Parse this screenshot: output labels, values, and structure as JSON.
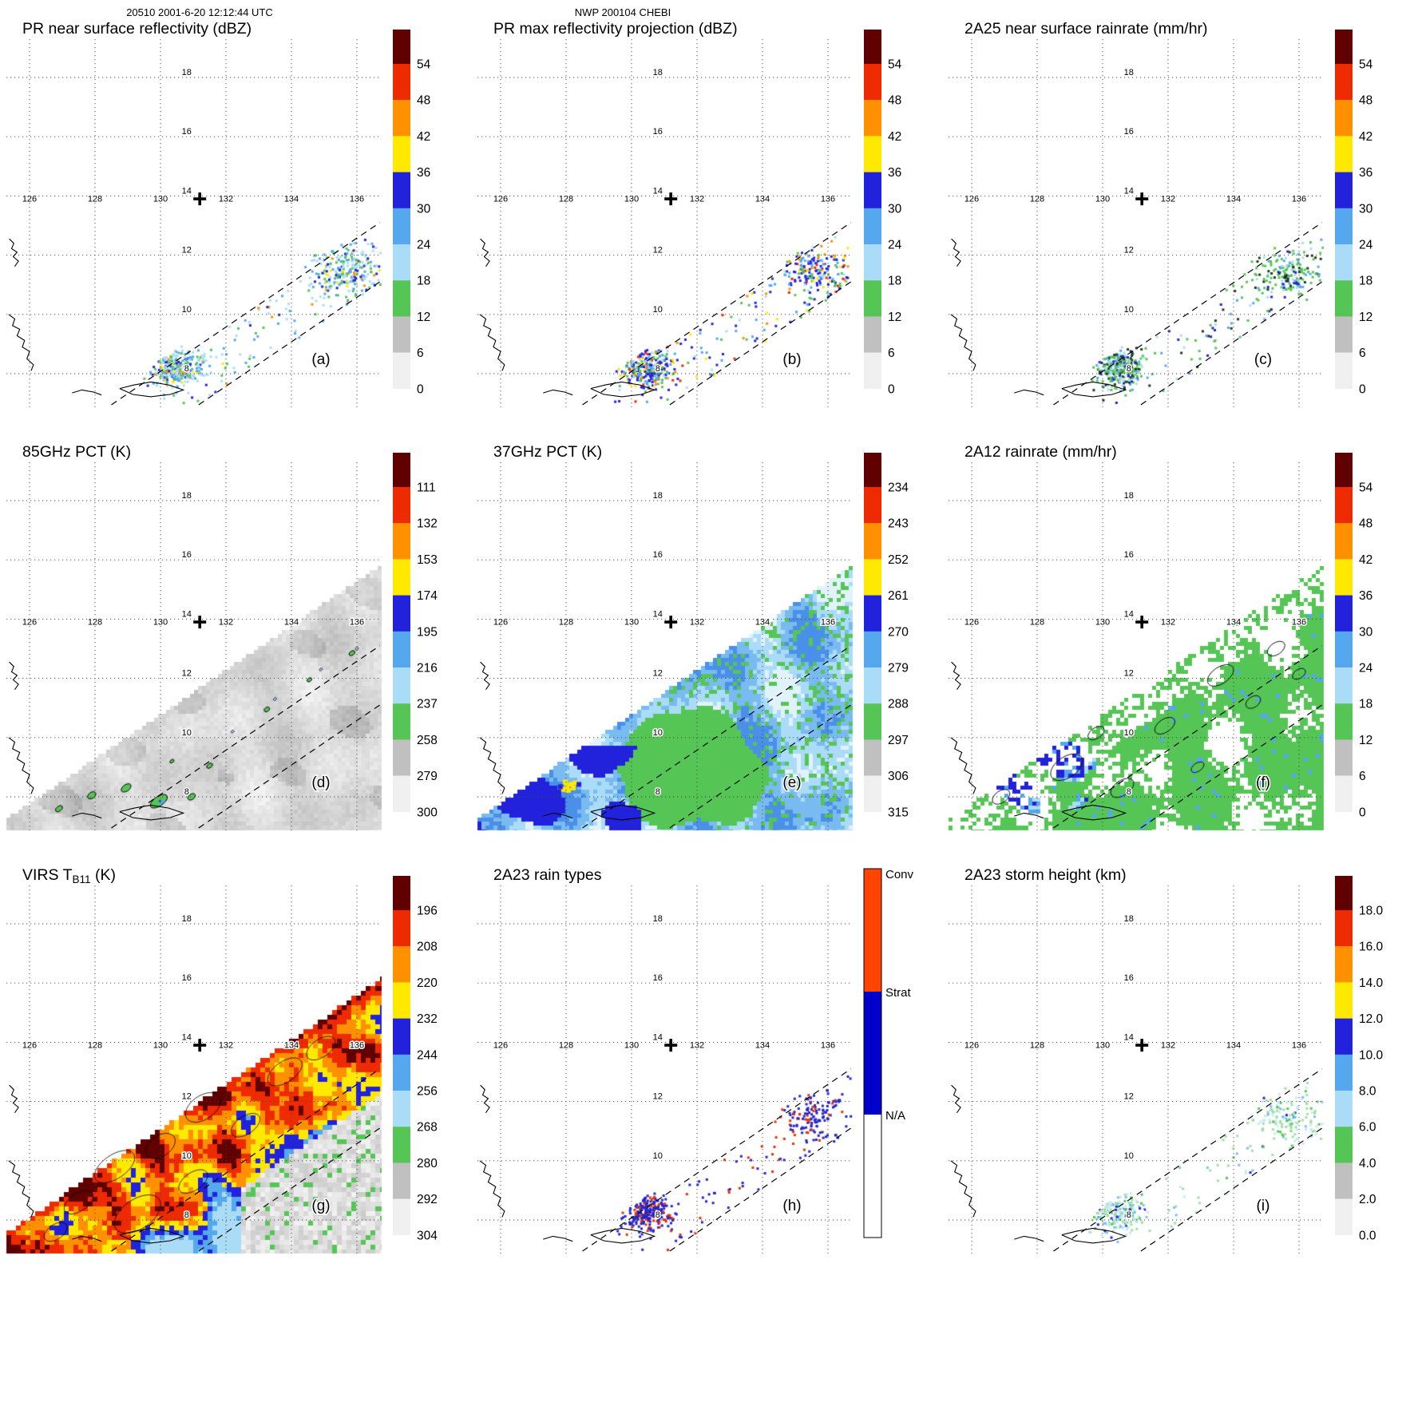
{
  "header": {
    "left": "20510 2001-6-20 12:12:44 UTC",
    "center": "NWP 200104 CHEBI"
  },
  "palette": {
    "colorbar_cap": "#600000",
    "colorbar_segments": [
      "#ee2a00",
      "#ff9000",
      "#ffe900",
      "#2222dd",
      "#55a7ee",
      "#aadcf7",
      "#55c555",
      "#c0c0c0",
      "#f0f0f0"
    ],
    "rain_type_colors": [
      "#ff4400",
      "#0000cc",
      "#ffffff"
    ],
    "grid_color": "#444444",
    "background": "#ffffff"
  },
  "rain_types": {
    "labels": [
      "Conv",
      "Strat",
      "N/A"
    ]
  },
  "chart_data": {
    "type": "heatmap",
    "title": "TRMM orbit 20510 overpass of typhoon CHEBI (NWP 200104), 2001-6-20 12:12:44 UTC; 3x3 panels of satellite radar/radiometer fields on a lon-lat map",
    "lon_gridlines": [
      126,
      128,
      130,
      132,
      134,
      136
    ],
    "lat_gridlines": [
      8,
      10,
      12,
      14,
      16,
      18
    ],
    "lon_labels": [
      "126",
      "128",
      "130",
      "132",
      "134",
      "136"
    ],
    "lat_labels": [
      "8",
      "10",
      "12",
      "14",
      "16",
      "18"
    ],
    "marker": {
      "glyph": "+",
      "lon": 131.2,
      "lat": 13.9
    },
    "swath": {
      "slope": 0.75,
      "ref_lon": 131.5,
      "pr_edges": [
        9.2,
        7.2
      ],
      "wide_edge": 11.9,
      "virs_edge": 12.2
    },
    "coastlines": [
      [
        [
          125.38,
          12.55
        ],
        [
          125.52,
          12.4
        ],
        [
          125.45,
          12.22
        ],
        [
          125.62,
          12.1
        ],
        [
          125.5,
          11.95
        ],
        [
          125.66,
          11.8
        ],
        [
          125.55,
          11.62
        ]
      ],
      [
        [
          125.36,
          10.0
        ],
        [
          125.55,
          9.85
        ],
        [
          125.48,
          9.62
        ],
        [
          125.7,
          9.5
        ],
        [
          125.62,
          9.28
        ],
        [
          125.85,
          9.12
        ],
        [
          125.78,
          8.9
        ],
        [
          126.0,
          8.75
        ],
        [
          125.92,
          8.5
        ],
        [
          126.12,
          8.3
        ],
        [
          126.05,
          8.1
        ]
      ],
      [
        [
          128.75,
          7.5
        ],
        [
          129.2,
          7.62
        ],
        [
          129.7,
          7.72
        ],
        [
          130.25,
          7.62
        ],
        [
          130.7,
          7.45
        ],
        [
          130.3,
          7.3
        ],
        [
          129.7,
          7.22
        ],
        [
          129.15,
          7.3
        ],
        [
          128.75,
          7.5
        ]
      ],
      [
        [
          127.3,
          7.35
        ],
        [
          127.6,
          7.45
        ],
        [
          127.95,
          7.38
        ],
        [
          128.2,
          7.28
        ]
      ]
    ],
    "panels": [
      {
        "id": "a",
        "letter": "(a)",
        "title_pre": "PR near surface reflectivity (dBZ)",
        "title_sub": "",
        "title_post": "",
        "colorbar": "standard",
        "ticks": [
          "54",
          "48",
          "42",
          "36",
          "30",
          "24",
          "18",
          "12",
          "6",
          "0"
        ],
        "style": "pr_a",
        "seed": 11
      },
      {
        "id": "b",
        "letter": "(b)",
        "title_pre": "PR max reflectivity projection (dBZ)",
        "title_sub": "",
        "title_post": "",
        "colorbar": "standard",
        "ticks": [
          "54",
          "48",
          "42",
          "36",
          "30",
          "24",
          "18",
          "12",
          "6",
          "0"
        ],
        "style": "pr_b",
        "seed": 23
      },
      {
        "id": "c",
        "letter": "(c)",
        "title_pre": "2A25 near surface rainrate (mm/hr)",
        "title_sub": "",
        "title_post": "",
        "colorbar": "standard",
        "ticks": [
          "54",
          "48",
          "42",
          "36",
          "30",
          "24",
          "18",
          "12",
          "6",
          "0"
        ],
        "style": "pr_c",
        "seed": 37
      },
      {
        "id": "d",
        "letter": "(d)",
        "title_pre": "85GHz PCT (K)",
        "title_sub": "",
        "title_post": "",
        "colorbar": "standard",
        "ticks": [
          "111",
          "132",
          "153",
          "174",
          "195",
          "216",
          "237",
          "258",
          "279",
          "300"
        ],
        "style": "tmi_gray",
        "seed": 41
      },
      {
        "id": "e",
        "letter": "(e)",
        "title_pre": "37GHz PCT (K)",
        "title_sub": "",
        "title_post": "",
        "colorbar": "standard",
        "ticks": [
          "234",
          "243",
          "252",
          "261",
          "270",
          "279",
          "288",
          "297",
          "306",
          "315"
        ],
        "style": "tmi_blue",
        "seed": 53
      },
      {
        "id": "f",
        "letter": "(f)",
        "title_pre": "2A12 rainrate (mm/hr)",
        "title_sub": "",
        "title_post": "",
        "colorbar": "standard",
        "ticks": [
          "54",
          "48",
          "42",
          "36",
          "30",
          "24",
          "18",
          "12",
          "6",
          "0"
        ],
        "style": "tmi_rain",
        "seed": 67
      },
      {
        "id": "g",
        "letter": "(g)",
        "title_pre": "VIRS T",
        "title_sub": "B11",
        "title_post": " (K)",
        "colorbar": "standard",
        "ticks": [
          "196",
          "208",
          "220",
          "232",
          "244",
          "256",
          "268",
          "280",
          "292",
          "304"
        ],
        "style": "virs",
        "seed": 79
      },
      {
        "id": "h",
        "letter": "(h)",
        "title_pre": "2A23 rain types",
        "title_sub": "",
        "title_post": "",
        "colorbar": "raintype",
        "ticks": [],
        "style": "pr_h",
        "seed": 83
      },
      {
        "id": "i",
        "letter": "(i)",
        "title_pre": "2A23 storm height (km)",
        "title_sub": "",
        "title_post": "",
        "colorbar": "standard",
        "ticks": [
          "18.0",
          "16.0",
          "14.0",
          "12.0",
          "10.0",
          "8.0",
          "6.0",
          "4.0",
          "2.0",
          "0.0"
        ],
        "style": "pr_i",
        "seed": 97
      }
    ]
  }
}
